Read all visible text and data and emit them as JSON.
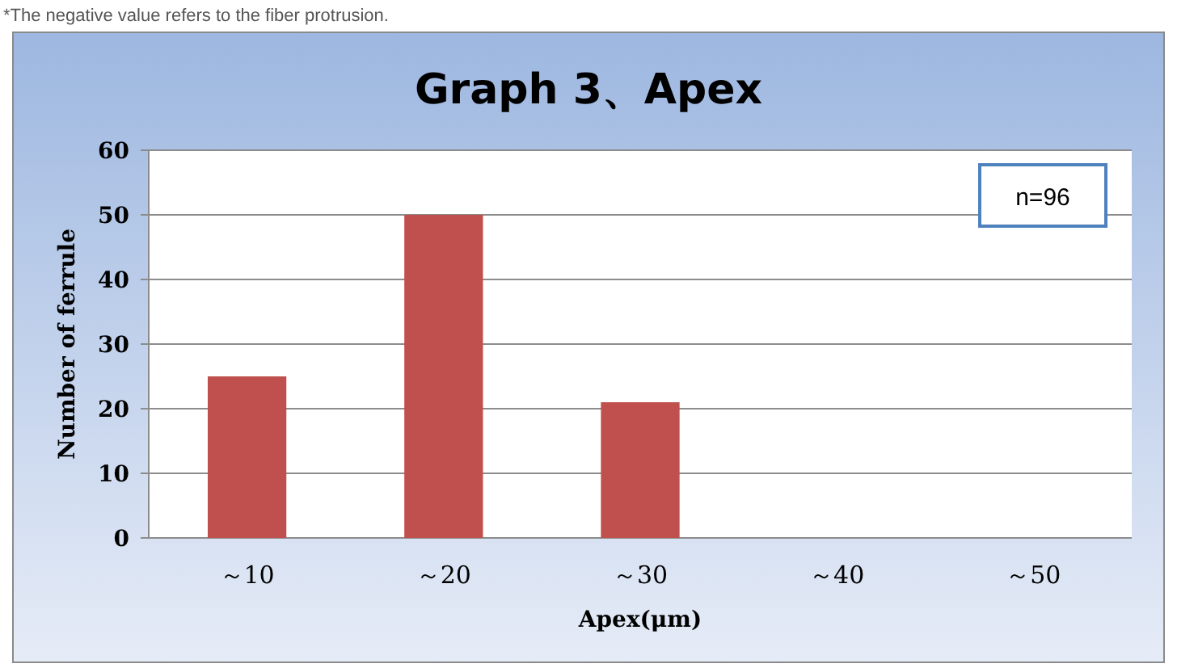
{
  "chart_data": {
    "type": "bar",
    "title": "Graph 3、Apex",
    "xlabel": "Apex(μm)",
    "ylabel": "Number of ferrule",
    "annotations": [
      "*The negative value refers to the fiber protrusion.",
      "n=96"
    ],
    "categories": [
      "～10",
      "～20",
      "～30",
      "～40",
      "～50"
    ],
    "values": [
      25,
      50,
      21,
      0,
      0
    ],
    "color": "#c0504d",
    "ylim": [
      0,
      60
    ],
    "yticks": [
      0,
      10,
      20,
      30,
      40,
      50,
      60
    ],
    "grid": "y"
  }
}
